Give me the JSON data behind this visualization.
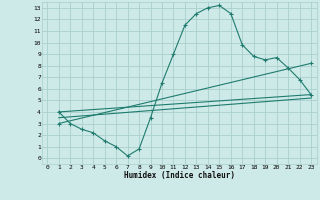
{
  "xlabel": "Humidex (Indice chaleur)",
  "bg_color": "#ceeae8",
  "line_color": "#1e7b6e",
  "grid_color": "#aacfcc",
  "xlim": [
    -0.5,
    23.5
  ],
  "ylim": [
    -0.5,
    13.5
  ],
  "xticks": [
    0,
    1,
    2,
    3,
    4,
    5,
    6,
    7,
    8,
    9,
    10,
    11,
    12,
    13,
    14,
    15,
    16,
    17,
    18,
    19,
    20,
    21,
    22,
    23
  ],
  "yticks": [
    0,
    1,
    2,
    3,
    4,
    5,
    6,
    7,
    8,
    9,
    10,
    11,
    12,
    13
  ],
  "line1_x": [
    1,
    2,
    3,
    4,
    5,
    6,
    7,
    8,
    9,
    10,
    11,
    12,
    13,
    14,
    15,
    16,
    17,
    18,
    19,
    20,
    21,
    22,
    23
  ],
  "line1_y": [
    4.0,
    3.0,
    2.5,
    2.2,
    1.5,
    1.0,
    0.2,
    0.8,
    3.5,
    6.5,
    9.0,
    11.5,
    12.5,
    13.0,
    13.2,
    12.5,
    9.8,
    8.8,
    8.5,
    8.7,
    7.8,
    6.8,
    5.5
  ],
  "line2_x": [
    1,
    23
  ],
  "line2_y": [
    4.0,
    5.5
  ],
  "line3_x": [
    1,
    23
  ],
  "line3_y": [
    3.0,
    8.2
  ],
  "line4_x": [
    1,
    23
  ],
  "line4_y": [
    3.5,
    5.2
  ],
  "marker_line3_x": [
    1,
    23
  ],
  "marker_line3_y": [
    3.0,
    8.2
  ]
}
